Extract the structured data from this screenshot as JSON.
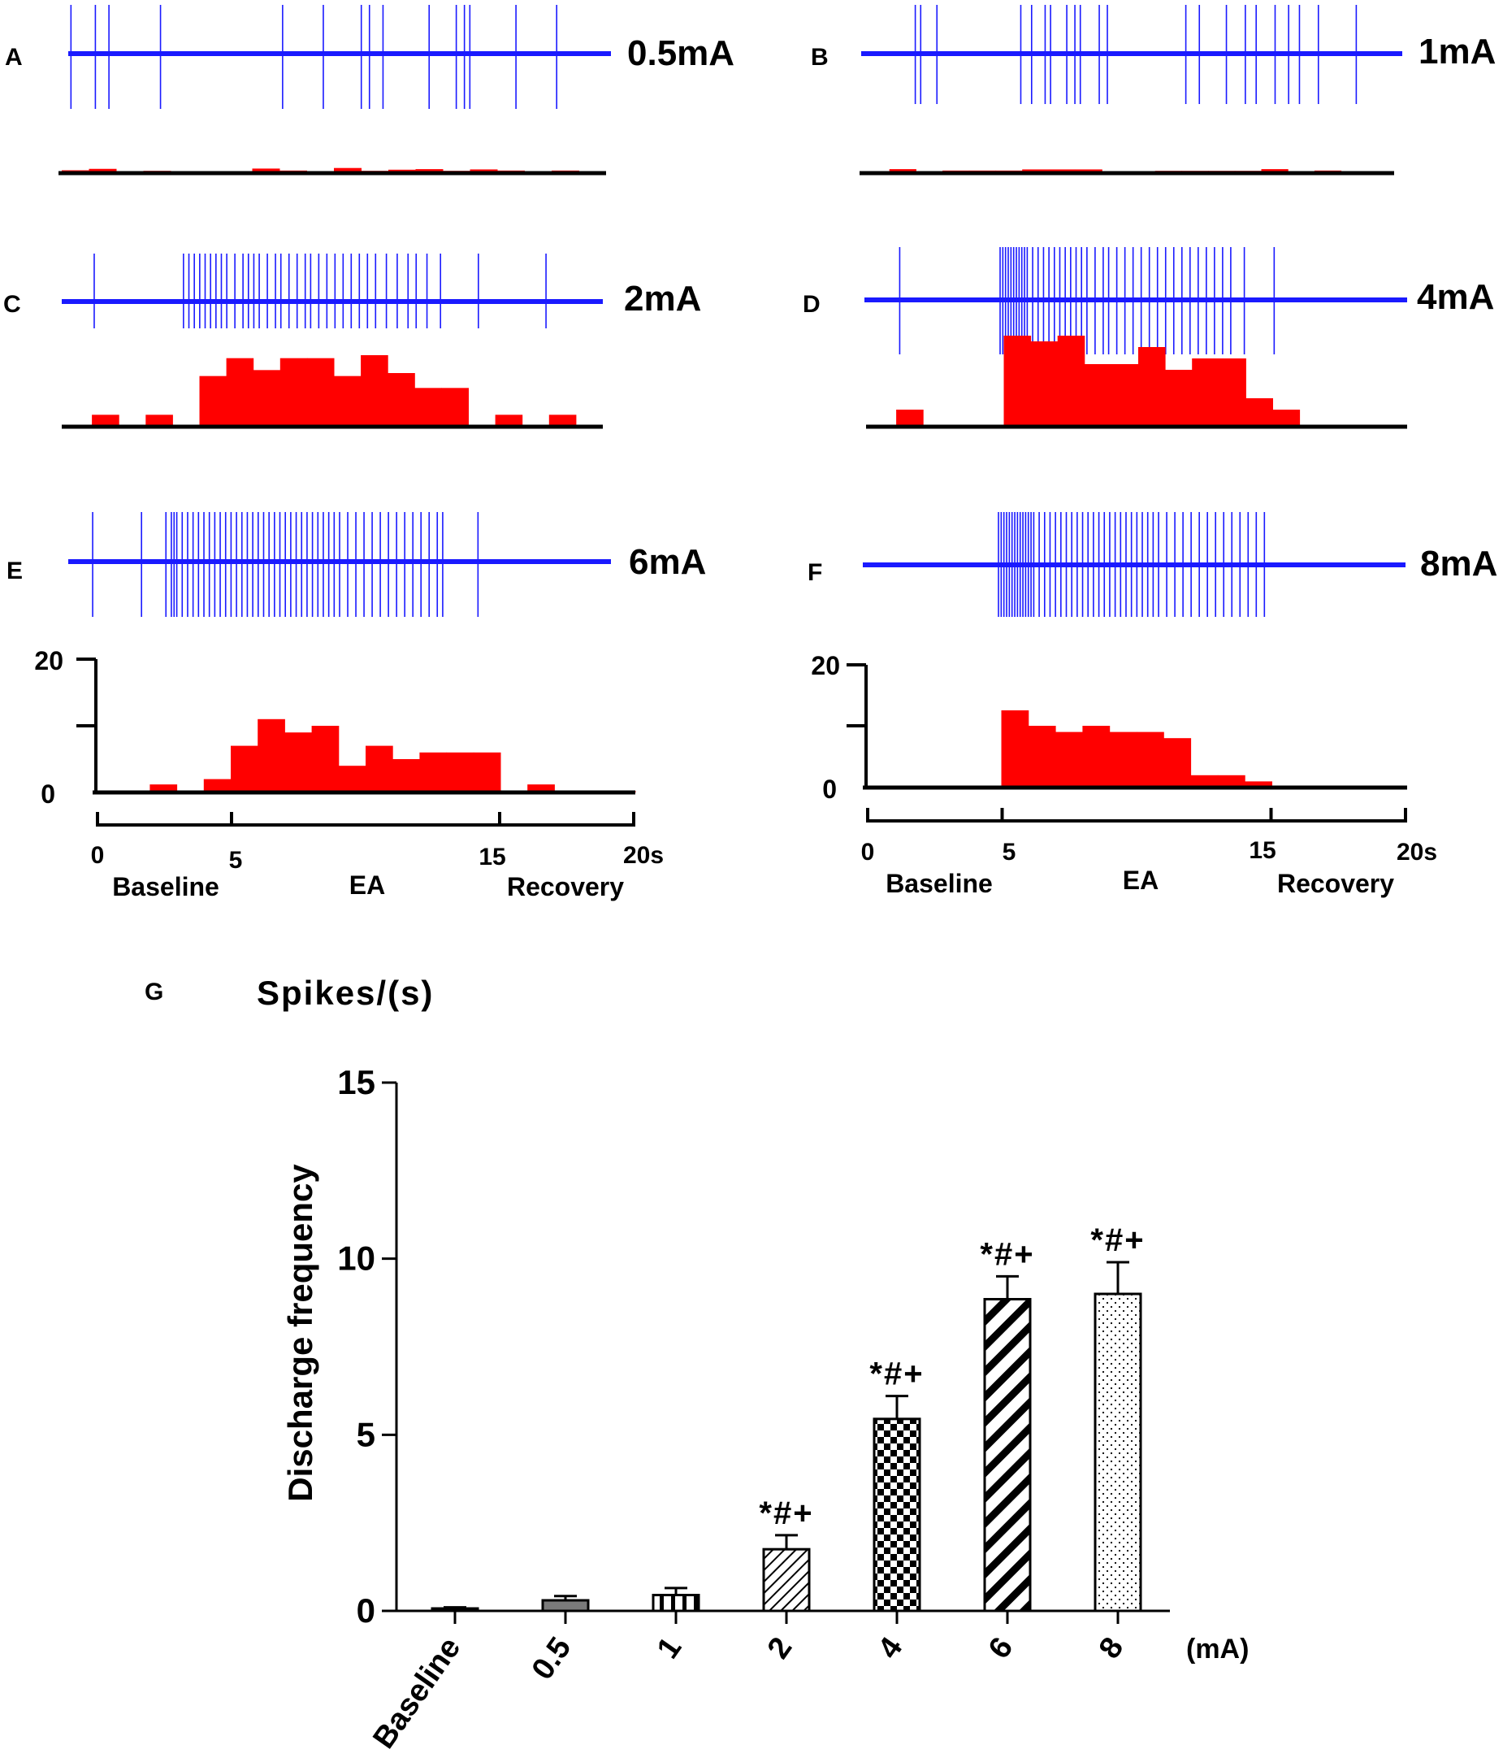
{
  "colors": {
    "spike": "#1a1aff",
    "hist": "#ff0000",
    "axis": "#000000"
  },
  "panels": [
    {
      "letter": "A",
      "intensity": "0.5mA",
      "spike_times": [
        0.1,
        1.0,
        1.5,
        3.4,
        7.9,
        9.4,
        10.8,
        11.1,
        11.6,
        13.3,
        14.3,
        14.6,
        14.8,
        16.5,
        18.0
      ],
      "hist_counts": [
        1,
        1.5,
        0,
        0.8,
        0,
        0.2,
        0,
        1.6,
        0.9,
        0,
        1.8,
        0.8,
        1.2,
        1.4,
        0.8,
        1.3,
        0.9,
        0,
        0.9,
        0
      ]
    },
    {
      "letter": "B",
      "intensity": "1mA",
      "spike_times": [
        2.0,
        2.2,
        2.8,
        5.9,
        6.3,
        6.8,
        7.0,
        7.6,
        7.9,
        8.1,
        8.8,
        9.1,
        12.0,
        12.5,
        13.5,
        14.2,
        14.6,
        15.3,
        15.8,
        16.2,
        16.9,
        18.3
      ],
      "hist_counts": [
        0,
        1.4,
        0,
        0.9,
        0.9,
        0.9,
        1.3,
        1.3,
        1.3,
        0,
        0,
        0.8,
        0.8,
        0.8,
        0.8,
        1.4,
        0,
        0.9,
        0,
        0
      ]
    },
    {
      "letter": "C",
      "intensity": "2mA",
      "spike_times": [
        1.2,
        4.5,
        4.7,
        4.9,
        5.1,
        5.3,
        5.5,
        5.7,
        5.9,
        6.1,
        6.4,
        6.7,
        6.9,
        7.1,
        7.3,
        7.6,
        7.9,
        8.1,
        8.4,
        8.7,
        9.0,
        9.2,
        9.5,
        9.8,
        10.1,
        10.4,
        10.7,
        11.0,
        11.3,
        11.6,
        12.0,
        12.4,
        12.8,
        13.1,
        13.5,
        14.0,
        15.4,
        17.9
      ],
      "hist_counts": [
        0,
        0.4,
        0,
        0.4,
        0,
        1.7,
        2.3,
        1.9,
        2.3,
        2.3,
        1.7,
        2.4,
        1.8,
        1.3,
        1.3,
        0,
        0.4,
        0,
        0.4,
        0
      ]
    },
    {
      "letter": "D",
      "intensity": "4mA",
      "spike_times": [
        1.3,
        5.0,
        5.1,
        5.2,
        5.3,
        5.4,
        5.5,
        5.6,
        5.7,
        5.8,
        5.9,
        6.0,
        6.2,
        6.4,
        6.6,
        6.8,
        7.0,
        7.2,
        7.4,
        7.6,
        7.8,
        8.0,
        8.2,
        8.5,
        8.8,
        9.0,
        9.3,
        9.6,
        9.9,
        10.2,
        10.5,
        10.8,
        11.1,
        11.4,
        11.7,
        12.0,
        12.3,
        12.6,
        12.9,
        13.2,
        13.5,
        14.0,
        15.1
      ],
      "hist_counts": [
        0,
        0.3,
        0,
        0,
        0,
        1.6,
        1.5,
        1.6,
        1.1,
        1.1,
        1.4,
        1.0,
        1.2,
        1.2,
        0.5,
        0.3,
        0,
        0,
        0,
        0
      ]
    },
    {
      "letter": "E",
      "intensity": "6mA",
      "spike_times": [
        0.9,
        2.7,
        3.6,
        3.8,
        3.9,
        4.0,
        4.2,
        4.4,
        4.6,
        4.8,
        5.0,
        5.2,
        5.4,
        5.6,
        5.8,
        6.0,
        6.2,
        6.4,
        6.6,
        6.8,
        7.0,
        7.2,
        7.4,
        7.6,
        7.8,
        8.0,
        8.2,
        8.4,
        8.6,
        8.8,
        9.0,
        9.2,
        9.4,
        9.6,
        9.8,
        10.0,
        10.3,
        10.6,
        10.9,
        11.2,
        11.5,
        11.8,
        12.1,
        12.4,
        12.7,
        13.0,
        13.3,
        13.6,
        13.8,
        15.1
      ],
      "hist_counts": [
        0.3,
        0,
        1.2,
        0,
        2.0,
        7.0,
        11.0,
        9.0,
        10.0,
        4.0,
        7.0,
        5.0,
        6.0,
        6.0,
        6.0,
        0,
        1.2,
        0,
        0.2,
        0.2
      ],
      "yaxis": {
        "ticks": [
          "0",
          "20"
        ],
        "max": 20
      },
      "xaxis": {
        "ticks": [
          "0",
          "5",
          "15",
          "20s"
        ],
        "phases": [
          "Baseline",
          "EA",
          "Recovery"
        ]
      }
    },
    {
      "letter": "F",
      "intensity": "8mA",
      "spike_times": [
        5.0,
        5.1,
        5.2,
        5.3,
        5.4,
        5.5,
        5.6,
        5.7,
        5.8,
        5.9,
        6.0,
        6.1,
        6.2,
        6.3,
        6.5,
        6.7,
        6.9,
        7.1,
        7.3,
        7.5,
        7.7,
        7.9,
        8.1,
        8.3,
        8.5,
        8.7,
        8.9,
        9.1,
        9.3,
        9.5,
        9.7,
        9.9,
        10.1,
        10.3,
        10.5,
        10.7,
        10.9,
        11.2,
        11.5,
        11.8,
        12.1,
        12.4,
        12.7,
        13.0,
        13.3,
        13.6,
        13.9,
        14.2,
        14.5,
        14.8
      ],
      "hist_counts": [
        0,
        0,
        0,
        0,
        0,
        12.5,
        10.0,
        9.0,
        10.0,
        9.0,
        9.0,
        8.0,
        2.0,
        2.0,
        1.0,
        0,
        0,
        0,
        0,
        0
      ],
      "yaxis": {
        "ticks": [
          "0",
          "20"
        ],
        "max": 20
      },
      "xaxis": {
        "ticks": [
          "0",
          "5",
          "15",
          "20s"
        ],
        "phases": [
          "Baseline",
          "EA",
          "Recovery"
        ]
      }
    }
  ],
  "chart_data": {
    "type": "bar",
    "panel_letter": "G",
    "title": "Spikes/(s)",
    "ylabel": "Discharge frequency",
    "xunit": "(mA)",
    "ylim": [
      0,
      15
    ],
    "yticks": [
      "0",
      "5",
      "10",
      "15"
    ],
    "categories": [
      "Baseline",
      "0.5",
      "1",
      "2",
      "4",
      "6",
      "8"
    ],
    "values": [
      0.05,
      0.3,
      0.45,
      1.75,
      5.45,
      8.85,
      9.0
    ],
    "errors": [
      0.05,
      0.12,
      0.2,
      0.4,
      0.65,
      0.65,
      0.9
    ],
    "annotations": [
      "",
      "",
      "",
      "*#+",
      "*#+",
      "*#+",
      "*#+"
    ],
    "patterns": [
      "solid-gray",
      "solid-dark",
      "vertical",
      "diagonal-thin",
      "checker",
      "diagonal-thick",
      "dots"
    ]
  }
}
